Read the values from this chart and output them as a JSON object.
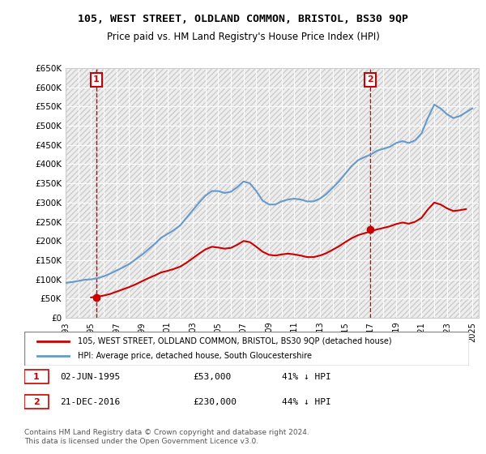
{
  "title": "105, WEST STREET, OLDLAND COMMON, BRISTOL, BS30 9QP",
  "subtitle": "Price paid vs. HM Land Registry's House Price Index (HPI)",
  "legend_line1": "105, WEST STREET, OLDLAND COMMON, BRISTOL, BS30 9QP (detached house)",
  "legend_line2": "HPI: Average price, detached house, South Gloucestershire",
  "footer": "Contains HM Land Registry data © Crown copyright and database right 2024.\nThis data is licensed under the Open Government Licence v3.0.",
  "transaction1_label": "1",
  "transaction1_date": "02-JUN-1995",
  "transaction1_price": "£53,000",
  "transaction1_hpi": "41% ↓ HPI",
  "transaction1_x": 1995.42,
  "transaction1_y": 53000,
  "transaction2_label": "2",
  "transaction2_date": "21-DEC-2016",
  "transaction2_price": "£230,000",
  "transaction2_hpi": "44% ↓ HPI",
  "transaction2_x": 2016.97,
  "transaction2_y": 230000,
  "red_color": "#cc0000",
  "blue_color": "#6699cc",
  "dashed_red_color": "#cc0000",
  "background_color": "#ffffff",
  "grid_color": "#cccccc",
  "ylim": [
    0,
    650000
  ],
  "xlim": [
    1993,
    2025.5
  ],
  "yticks": [
    0,
    50000,
    100000,
    150000,
    200000,
    250000,
    300000,
    350000,
    400000,
    450000,
    500000,
    550000,
    600000,
    650000
  ],
  "ytick_labels": [
    "£0",
    "£50K",
    "£100K",
    "£150K",
    "£200K",
    "£250K",
    "£300K",
    "£350K",
    "£400K",
    "£450K",
    "£500K",
    "£550K",
    "£600K",
    "£650K"
  ],
  "xticks": [
    1993,
    1994,
    1995,
    1996,
    1997,
    1998,
    1999,
    2000,
    2001,
    2002,
    2003,
    2004,
    2005,
    2006,
    2007,
    2008,
    2009,
    2010,
    2011,
    2012,
    2013,
    2014,
    2015,
    2016,
    2017,
    2018,
    2019,
    2020,
    2021,
    2022,
    2023,
    2024,
    2025
  ],
  "hpi_years": [
    1993,
    1993.5,
    1994,
    1994.5,
    1995,
    1995.5,
    1996,
    1996.5,
    1997,
    1997.5,
    1998,
    1998.5,
    1999,
    1999.5,
    2000,
    2000.5,
    2001,
    2001.5,
    2002,
    2002.5,
    2003,
    2003.5,
    2004,
    2004.5,
    2005,
    2005.5,
    2006,
    2006.5,
    2007,
    2007.5,
    2008,
    2008.5,
    2009,
    2009.5,
    2010,
    2010.5,
    2011,
    2011.5,
    2012,
    2012.5,
    2013,
    2013.5,
    2014,
    2014.5,
    2015,
    2015.5,
    2016,
    2016.5,
    2017,
    2017.5,
    2018,
    2018.5,
    2019,
    2019.5,
    2020,
    2020.5,
    2021,
    2021.5,
    2022,
    2022.5,
    2023,
    2023.5,
    2024,
    2024.5,
    2025
  ],
  "hpi_values": [
    91000,
    93000,
    96000,
    99000,
    100000,
    103000,
    108000,
    115000,
    123000,
    131000,
    140000,
    152000,
    164000,
    178000,
    192000,
    208000,
    218000,
    228000,
    240000,
    260000,
    280000,
    300000,
    318000,
    330000,
    330000,
    325000,
    328000,
    340000,
    355000,
    350000,
    330000,
    305000,
    295000,
    295000,
    303000,
    308000,
    310000,
    308000,
    303000,
    303000,
    310000,
    322000,
    338000,
    355000,
    375000,
    395000,
    410000,
    418000,
    425000,
    435000,
    440000,
    445000,
    455000,
    460000,
    455000,
    462000,
    480000,
    520000,
    555000,
    545000,
    530000,
    520000,
    525000,
    535000,
    545000
  ],
  "red_years": [
    1995,
    1995.5,
    1996,
    1996.5,
    1997,
    1997.5,
    1998,
    1998.5,
    1999,
    1999.5,
    2000,
    2000.5,
    2001,
    2001.5,
    2002,
    2002.5,
    2003,
    2003.5,
    2004,
    2004.5,
    2005,
    2005.5,
    2006,
    2006.5,
    2007,
    2007.5,
    2008,
    2008.5,
    2009,
    2009.5,
    2010,
    2010.5,
    2011,
    2011.5,
    2012,
    2012.5,
    2013,
    2013.5,
    2014,
    2014.5,
    2015,
    2015.5,
    2016,
    2016.5,
    2017,
    2017.5,
    2018,
    2018.5,
    2019,
    2019.5,
    2020,
    2020.5,
    2021,
    2021.5,
    2022,
    2022.5,
    2023,
    2023.5,
    2024,
    2024.5
  ],
  "red_values": [
    53000,
    55000,
    58000,
    62000,
    68000,
    74000,
    80000,
    87000,
    95000,
    103000,
    110000,
    118000,
    122000,
    127000,
    133000,
    143000,
    155000,
    167000,
    178000,
    185000,
    183000,
    180000,
    182000,
    190000,
    200000,
    197000,
    185000,
    172000,
    164000,
    162000,
    165000,
    167000,
    165000,
    162000,
    158000,
    158000,
    162000,
    168000,
    177000,
    186000,
    197000,
    207000,
    215000,
    220000,
    225000,
    230000,
    234000,
    238000,
    244000,
    248000,
    245000,
    250000,
    260000,
    282000,
    300000,
    295000,
    285000,
    278000,
    280000,
    283000
  ]
}
